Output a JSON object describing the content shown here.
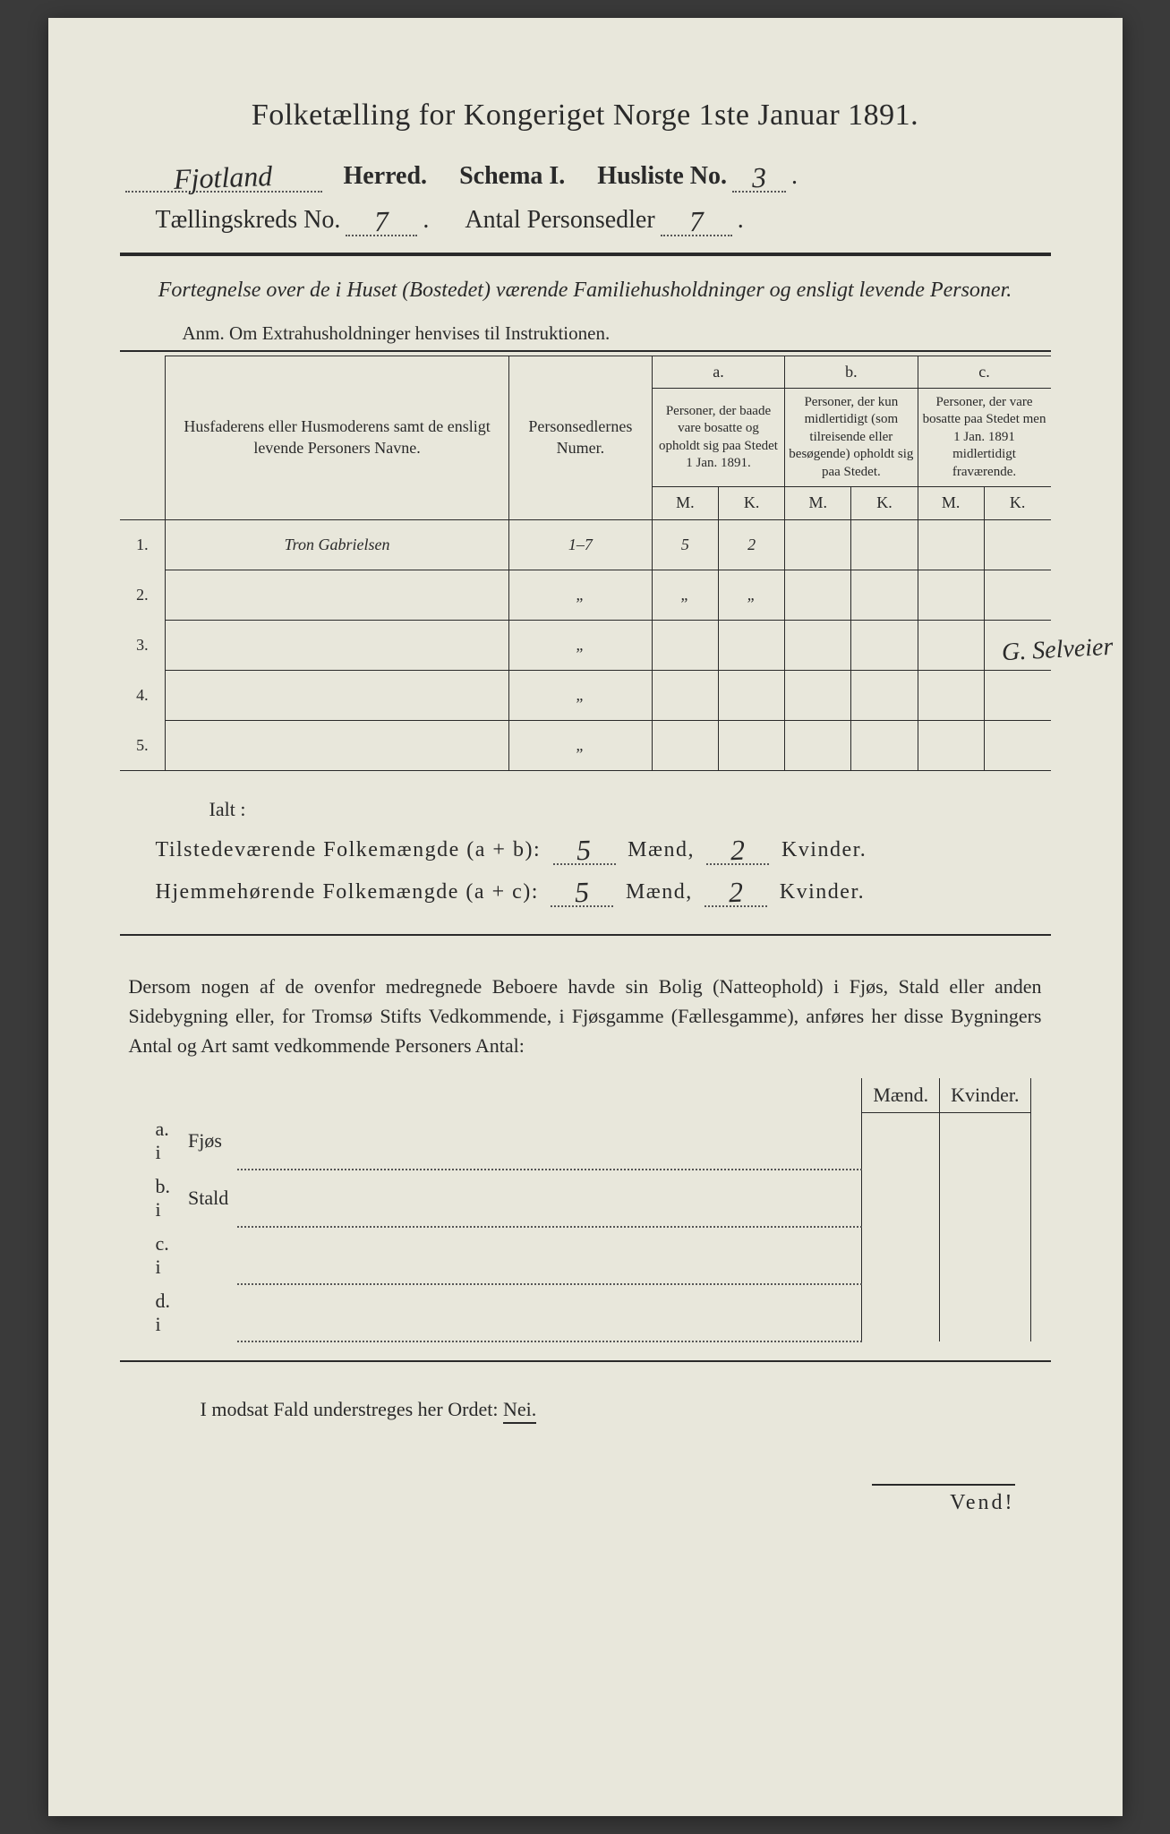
{
  "title": "Folketælling for Kongeriget Norge 1ste Januar 1891.",
  "header": {
    "herred_value": "Fjotland",
    "herred_label": "Herred.",
    "schema_label": "Schema I.",
    "husliste_label": "Husliste No.",
    "husliste_value": "3",
    "kreds_label": "Tællingskreds No.",
    "kreds_value": "7",
    "antal_label": "Antal Personsedler",
    "antal_value": "7"
  },
  "subtitle": "Fortegnelse over de i Huset (Bostedet) værende Familiehusholdninger og ensligt levende Personer.",
  "anm": "Anm.  Om Extrahusholdninger henvises til Instruktionen.",
  "table": {
    "col1": "Husfaderens eller Husmoderens samt de ensligt levende Personers Navne.",
    "col2": "Personsedlernes Numer.",
    "a_label": "a.",
    "a_text": "Personer, der baade vare bosatte og opholdt sig paa Stedet 1 Jan. 1891.",
    "b_label": "b.",
    "b_text": "Personer, der kun midlertidigt (som tilreisende eller besøgende) opholdt sig paa Stedet.",
    "c_label": "c.",
    "c_text": "Personer, der vare bosatte paa Stedet men 1 Jan. 1891 midlertidigt fraværende.",
    "m": "M.",
    "k": "K.",
    "rows": [
      {
        "num": "1.",
        "name": "Tron Gabrielsen",
        "sedler": "1–7",
        "a_m": "5",
        "a_k": "2",
        "b_m": "",
        "b_k": "",
        "c_m": "",
        "c_k": ""
      },
      {
        "num": "2.",
        "name": "",
        "sedler": "„",
        "a_m": "„",
        "a_k": "„",
        "b_m": "",
        "b_k": "",
        "c_m": "",
        "c_k": ""
      },
      {
        "num": "3.",
        "name": "",
        "sedler": "„",
        "a_m": "",
        "a_k": "",
        "b_m": "",
        "b_k": "",
        "c_m": "",
        "c_k": ""
      },
      {
        "num": "4.",
        "name": "",
        "sedler": "„",
        "a_m": "",
        "a_k": "",
        "b_m": "",
        "b_k": "",
        "c_m": "",
        "c_k": ""
      },
      {
        "num": "5.",
        "name": "",
        "sedler": "„",
        "a_m": "",
        "a_k": "",
        "b_m": "",
        "b_k": "",
        "c_m": "",
        "c_k": ""
      }
    ]
  },
  "margin_note": "G. Selveier",
  "ialt": "Ialt :",
  "totals": {
    "line1_label": "Tilstedeværende Folkemængde (a + b):",
    "line1_m": "5",
    "line1_k": "2",
    "line2_label": "Hjemmehørende Folkemængde (a + c):",
    "line2_m": "5",
    "line2_k": "2",
    "maend": "Mænd,",
    "kvinder": "Kvinder."
  },
  "body_para": "Dersom nogen af de ovenfor medregnede Beboere havde sin Bolig (Natteophold) i Fjøs, Stald eller anden Sidebygning eller, for Tromsø Stifts Vedkommende, i Fjøsgamme (Fællesgamme), anføres her disse Bygningers Antal og Art samt vedkommende Personers Antal:",
  "sub_table": {
    "maend": "Mænd.",
    "kvinder": "Kvinder.",
    "rows": [
      {
        "key": "a.  i",
        "label": "Fjøs"
      },
      {
        "key": "b.  i",
        "label": "Stald"
      },
      {
        "key": "c.  i",
        "label": ""
      },
      {
        "key": "d.  i",
        "label": ""
      }
    ]
  },
  "nei_line_pre": "I modsat Fald understreges her Ordet: ",
  "nei_word": "Nei.",
  "vend": "Vend!"
}
